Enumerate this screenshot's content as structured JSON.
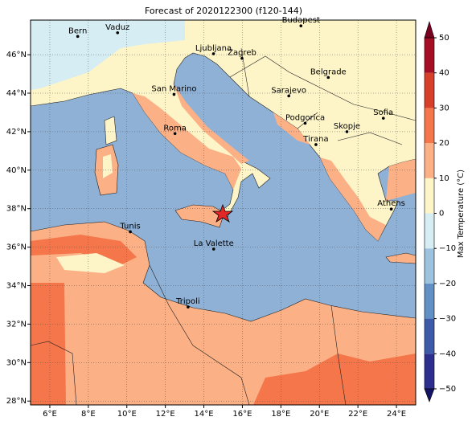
{
  "title": "Forecast of 2020122300 (f120-144)",
  "map": {
    "lon_range": [
      5,
      25
    ],
    "lat_range": [
      27.8,
      47.8
    ],
    "xticks": [
      {
        "value": 6,
        "label": "6°E"
      },
      {
        "value": 8,
        "label": "8°E"
      },
      {
        "value": 10,
        "label": "10°E"
      },
      {
        "value": 12,
        "label": "12°E"
      },
      {
        "value": 14,
        "label": "14°E"
      },
      {
        "value": 16,
        "label": "16°E"
      },
      {
        "value": 18,
        "label": "18°E"
      },
      {
        "value": 20,
        "label": "20°E"
      },
      {
        "value": 22,
        "label": "22°E"
      },
      {
        "value": 24,
        "label": "24°E"
      }
    ],
    "yticks": [
      {
        "value": 28,
        "label": "28°N"
      },
      {
        "value": 30,
        "label": "30°N"
      },
      {
        "value": 32,
        "label": "32°N"
      },
      {
        "value": 34,
        "label": "34°N"
      },
      {
        "value": 36,
        "label": "36°N"
      },
      {
        "value": 38,
        "label": "38°N"
      },
      {
        "value": 40,
        "label": "40°N"
      },
      {
        "value": 42,
        "label": "42°N"
      },
      {
        "value": 44,
        "label": "44°N"
      },
      {
        "value": 46,
        "label": "46°N"
      }
    ],
    "cities": [
      {
        "name": "Bern",
        "lon": 7.45,
        "lat": 46.95
      },
      {
        "name": "Vaduz",
        "lon": 9.52,
        "lat": 47.14
      },
      {
        "name": "Budapest",
        "lon": 19.04,
        "lat": 47.5
      },
      {
        "name": "Ljubljana",
        "lon": 14.5,
        "lat": 46.05
      },
      {
        "name": "Zagreb",
        "lon": 15.98,
        "lat": 45.81
      },
      {
        "name": "Belgrade",
        "lon": 20.46,
        "lat": 44.82
      },
      {
        "name": "San Marino",
        "lon": 12.45,
        "lat": 43.94
      },
      {
        "name": "Sarajevo",
        "lon": 18.41,
        "lat": 43.86
      },
      {
        "name": "Sofia",
        "lon": 23.32,
        "lat": 42.7
      },
      {
        "name": "Podgorica",
        "lon": 19.26,
        "lat": 42.44
      },
      {
        "name": "Skopje",
        "lon": 21.43,
        "lat": 42.0
      },
      {
        "name": "Roma",
        "lon": 12.5,
        "lat": 41.9
      },
      {
        "name": "Tirana",
        "lon": 19.82,
        "lat": 41.33
      },
      {
        "name": "Athens",
        "lon": 23.73,
        "lat": 37.98
      },
      {
        "name": "Tunis",
        "lon": 10.18,
        "lat": 36.8
      },
      {
        "name": "La Valette",
        "lon": 14.51,
        "lat": 35.9
      },
      {
        "name": "Tripoli",
        "lon": 13.18,
        "lat": 32.89
      }
    ]
  },
  "colorbar": {
    "label": "Max Temperature (°C)",
    "ticks": [
      {
        "value": -50,
        "label": "−50"
      },
      {
        "value": -40,
        "label": "−40"
      },
      {
        "value": -30,
        "label": "−30"
      },
      {
        "value": -20,
        "label": "−20"
      },
      {
        "value": -10,
        "label": "−10"
      },
      0,
      10,
      20,
      30,
      40,
      50
    ],
    "colors": [
      "#2c2f8e",
      "#3d5ba8",
      "#628fc4",
      "#9dc3de",
      "#d6edf4",
      "#fdf5c8",
      "#fcb085",
      "#f4764a",
      "#d63f2a",
      "#a60e26"
    ],
    "under_color": "#141466",
    "over_color": "#7a0020"
  }
}
